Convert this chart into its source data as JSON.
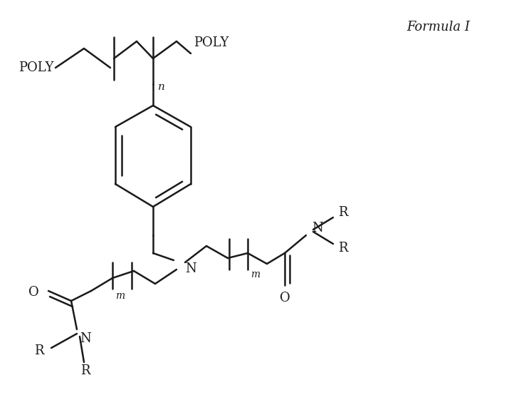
{
  "background_color": "#ffffff",
  "line_color": "#1a1a1a",
  "line_width": 1.8,
  "font_size": 12,
  "formula_label": "Formula I",
  "poly_label": "POLY",
  "n_label": "n",
  "m_label": "m",
  "N_label": "N",
  "O_label": "O",
  "R_label": "R"
}
